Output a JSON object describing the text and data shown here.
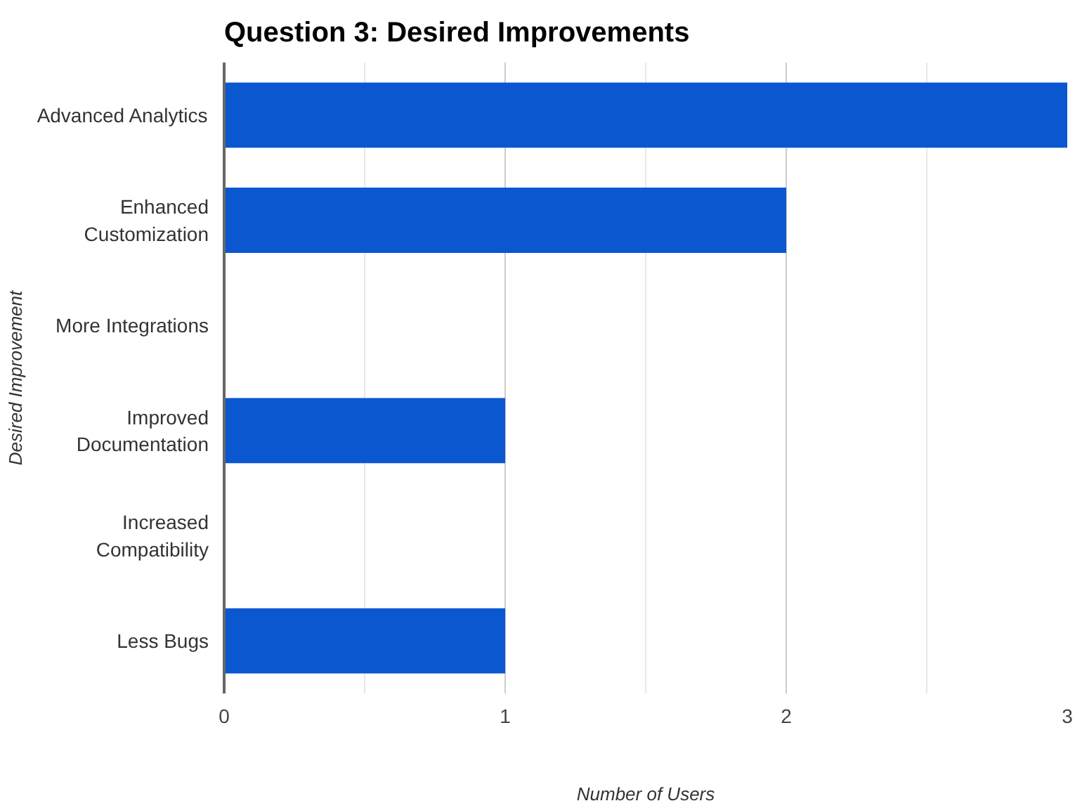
{
  "chart_data": {
    "type": "bar",
    "orientation": "horizontal",
    "title": "Question 3: Desired Improvements",
    "xlabel": "Number of Users",
    "ylabel": "Desired Improvement",
    "categories": [
      "Advanced Analytics",
      "Enhanced\nCustomization",
      "More Integrations",
      "Improved\nDocumentation",
      "Increased\nCompatibility",
      "Less Bugs"
    ],
    "values": [
      3,
      2,
      0,
      1,
      0,
      1
    ],
    "color": "#0b57d0",
    "xlim": [
      0,
      3
    ],
    "xticks": [
      0,
      {
        "value": 0.5,
        "label": null
      },
      1,
      {
        "value": 1.5,
        "label": null
      },
      2,
      {
        "value": 2.5,
        "label": null
      },
      3
    ],
    "grid": "x"
  }
}
